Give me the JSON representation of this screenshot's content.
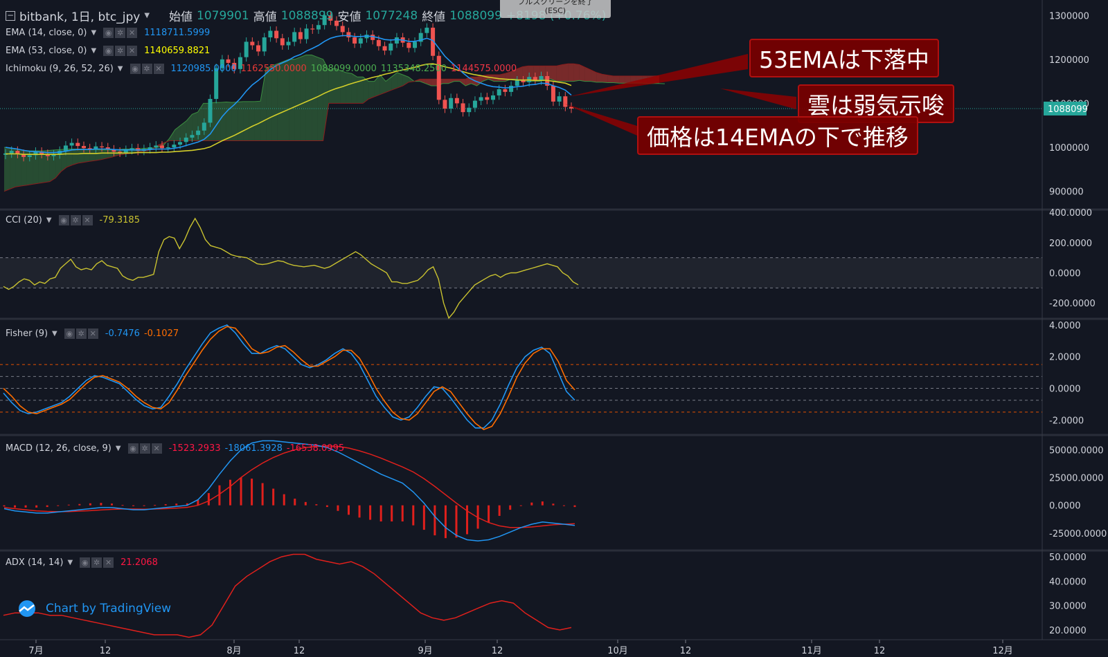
{
  "header": {
    "collapse_icon": "minus-square-icon",
    "symbol": "bitbank, 1日, btc_jpy",
    "open_label": "始値",
    "open_value": "1079901",
    "high_label": "高値",
    "high_value": "1088899",
    "low_label": "安値",
    "low_value": "1077248",
    "close_label": "終値",
    "close_value": "1088099",
    "change": "+8198 (+0.76%)"
  },
  "fullscreen_exit": {
    "label": "フルスクリーンを終了",
    "shortcut": "(ESC)"
  },
  "studies": {
    "ema14": {
      "label": "EMA (14, close, 0)",
      "value": "1118711.5999",
      "color": "#2196f3"
    },
    "ema53": {
      "label": "EMA (53, close, 0)",
      "value": "1140659.8821",
      "color": "#ffff00"
    },
    "ichimoku": {
      "label": "Ichimoku (9, 26, 52, 26)",
      "values": [
        "1120985.0000",
        "1162550.0000",
        "1088099.0000",
        "1135348.2500",
        "1144575.0000"
      ],
      "colors": [
        "#2196f3",
        "#e53935",
        "#4caf50",
        "#4caf50",
        "#f23645"
      ]
    },
    "cci": {
      "label": "CCI (20)",
      "value": "-79.3185",
      "color": "#c9c230"
    },
    "fisher": {
      "label": "Fisher (9)",
      "values": [
        "-0.7476",
        "-0.1027"
      ],
      "colors": [
        "#2196f3",
        "#ff6d00"
      ]
    },
    "macd": {
      "label": "MACD (12, 26, close, 9)",
      "values": [
        "-1523.2933",
        "-18061.3928",
        "-16538.0995"
      ],
      "colors": [
        "#ff1744",
        "#2196f3",
        "#ff1744"
      ]
    },
    "adx": {
      "label": "ADX (14, 14)",
      "value": "21.2068",
      "color": "#ff1744"
    }
  },
  "annotations": [
    "53EMAは下落中",
    "雲は弱気示唆",
    "価格は14EMAの下で推移"
  ],
  "branding": {
    "text": "Chart by TradingView",
    "icon": "tradingview-cloud-icon"
  },
  "chart_data": [
    {
      "type": "candlestick",
      "x_tick_labels": [
        "7月",
        "12",
        "8月",
        "12",
        "9月",
        "12",
        "10月",
        "12",
        "11月",
        "12",
        "12月"
      ],
      "y_ticks": [
        900000,
        1000000,
        1100000,
        1200000,
        1300000
      ],
      "last_price": 1088099,
      "ylim": [
        860000,
        1335000
      ],
      "close": [
        986000,
        992000,
        985000,
        978000,
        982000,
        990000,
        985000,
        980000,
        984000,
        992000,
        1004000,
        1010000,
        1003000,
        998000,
        996000,
        1002000,
        1000000,
        995000,
        990000,
        988000,
        994000,
        998000,
        992000,
        996000,
        1000000,
        1004000,
        998000,
        1000000,
        1006000,
        1012000,
        1022000,
        1028000,
        1038000,
        1056000,
        1110000,
        1180000,
        1200000,
        1192000,
        1178000,
        1205000,
        1240000,
        1232000,
        1218000,
        1250000,
        1265000,
        1248000,
        1232000,
        1240000,
        1262000,
        1246000,
        1270000,
        1268000,
        1278000,
        1300000,
        1288000,
        1276000,
        1262000,
        1250000,
        1236000,
        1248000,
        1256000,
        1244000,
        1230000,
        1220000,
        1236000,
        1250000,
        1238000,
        1226000,
        1240000,
        1260000,
        1272000,
        1208000,
        1108000,
        1088000,
        1112000,
        1100000,
        1080000,
        1090000,
        1106000,
        1114000,
        1108000,
        1118000,
        1132000,
        1126000,
        1140000,
        1152000,
        1148000,
        1160000,
        1152000,
        1162000,
        1140000,
        1104000,
        1116000,
        1092000,
        1088099
      ],
      "ema14": [
        1000000,
        998000,
        996000,
        993000,
        991000,
        990000,
        989000,
        988000,
        988000,
        989000,
        991000,
        994000,
        995000,
        995000,
        995000,
        996000,
        996000,
        996000,
        995000,
        994000,
        994000,
        994000,
        994000,
        994000,
        995000,
        996000,
        996000,
        996000,
        998000,
        1000000,
        1004000,
        1008000,
        1012000,
        1018000,
        1030000,
        1050000,
        1070000,
        1085000,
        1097000,
        1111000,
        1128000,
        1142000,
        1152000,
        1164000,
        1177000,
        1186000,
        1192000,
        1198000,
        1206000,
        1211000,
        1219000,
        1225000,
        1232000,
        1241000,
        1248000,
        1252000,
        1254000,
        1254000,
        1252000,
        1252000,
        1253000,
        1252000,
        1249000,
        1245000,
        1244000,
        1245000,
        1244000,
        1241000,
        1241000,
        1244000,
        1248000,
        1243000,
        1225000,
        1207000,
        1194000,
        1182000,
        1169000,
        1158000,
        1151000,
        1146000,
        1141000,
        1138000,
        1137000,
        1135000,
        1136000,
        1138000,
        1139000,
        1142000,
        1143000,
        1146000,
        1145000,
        1140000,
        1136000,
        1130000,
        1118712
      ],
      "ema53": [
        985000,
        985000,
        985000,
        984000,
        984000,
        984000,
        984000,
        984000,
        984000,
        984000,
        985000,
        985000,
        985000,
        986000,
        986000,
        986000,
        987000,
        987000,
        987000,
        987000,
        987000,
        987000,
        988000,
        988000,
        988000,
        988000,
        989000,
        989000,
        990000,
        991000,
        992000,
        993000,
        995000,
        997000,
        1001000,
        1008000,
        1015000,
        1021000,
        1027000,
        1034000,
        1041000,
        1048000,
        1054000,
        1061000,
        1068000,
        1074000,
        1080000,
        1086000,
        1092000,
        1098000,
        1104000,
        1110000,
        1116000,
        1123000,
        1129000,
        1134000,
        1138000,
        1143000,
        1147000,
        1151000,
        1155000,
        1159000,
        1162000,
        1166000,
        1169000,
        1173000,
        1176000,
        1179000,
        1182000,
        1186000,
        1189000,
        1190000,
        1187000,
        1183000,
        1180000,
        1176000,
        1172000,
        1168000,
        1165000,
        1163000,
        1160000,
        1158000,
        1156000,
        1155000,
        1154000,
        1153000,
        1153000,
        1153000,
        1152000,
        1152000,
        1152000,
        1150000,
        1148000,
        1146000,
        1140660
      ],
      "cloud_a": [
        1000000,
        998000,
        996000,
        994000,
        992000,
        992000,
        992000,
        992000,
        993000,
        994000,
        995000,
        996000,
        996000,
        996000,
        996000,
        995000,
        995000,
        994000,
        994000,
        994000,
        995000,
        996000,
        996000,
        997000,
        997000,
        998000,
        998000,
        1000000,
        1005000,
        1020000,
        1040000,
        1050000,
        1060000,
        1075000,
        1080000,
        1100000,
        1100000,
        1102000,
        1102000,
        1103000,
        1102000,
        1103000,
        1104000,
        1104000,
        1104000,
        1105000,
        1180000,
        1185000,
        1190000,
        1195000,
        1200000,
        1200000,
        1205000,
        1210000,
        1210000,
        1205000,
        1200000,
        1175000,
        1180000,
        1175000,
        1170000,
        1168000,
        1160000,
        1160000,
        1150000,
        1150000,
        1165000,
        1150000,
        1160000,
        1170000,
        1165000,
        1160000,
        1150000,
        1150000,
        1145000,
        1140000,
        1140000,
        1145000,
        1145000,
        1150000,
        1150000,
        1140000,
        1145000,
        1140000,
        1150000,
        1155000,
        1150000,
        1150000,
        1150000,
        1155000,
        1155000,
        1150000,
        1150000,
        1150000,
        1150000,
        1155000,
        1155000,
        1150000,
        1150000,
        1150000,
        1150000,
        1152000,
        1150000,
        1150000,
        1148000,
        1148000,
        1147000,
        1147000,
        1146000,
        1146000,
        1146000,
        1146000,
        1146000,
        1145000,
        1145000,
        1145000,
        1144575
      ],
      "cloud_b": [
        900000,
        905000,
        910000,
        912000,
        914000,
        916000,
        918000,
        920000,
        922000,
        930000,
        945000,
        955000,
        960000,
        964000,
        966000,
        968000,
        970000,
        972000,
        975000,
        978000,
        982000,
        984000,
        986000,
        988000,
        990000,
        992000,
        995000,
        1005000,
        1010000,
        1015000,
        1015000,
        1015000,
        1015000,
        1015000,
        1015000,
        1015000,
        1015000,
        1015000,
        1015000,
        1015000,
        1015000,
        1015000,
        1015000,
        1015000,
        1015000,
        1015000,
        1015000,
        1015000,
        1015000,
        1015000,
        1015000,
        1015000,
        1015000,
        1015000,
        1015000,
        1015000,
        1015000,
        1100000,
        1100000,
        1100000,
        1100000,
        1100000,
        1100000,
        1100000,
        1110000,
        1115000,
        1120000,
        1125000,
        1130000,
        1135000,
        1140000,
        1148000,
        1150000,
        1155000,
        1155000,
        1155000,
        1155000,
        1155000,
        1155000,
        1155000,
        1155000,
        1155000,
        1160000,
        1160000,
        1163000,
        1165000,
        1165000,
        1165000,
        1168000,
        1172000,
        1178000,
        1183000,
        1185000,
        1185000,
        1185000,
        1185000,
        1185000,
        1185000,
        1188000,
        1190000,
        1190000,
        1188000,
        1182000,
        1176000,
        1170000,
        1166000,
        1164000,
        1162000,
        1162000,
        1162000,
        1162000,
        1162000,
        1162000,
        1162000,
        1162000,
        1162550
      ]
    },
    {
      "type": "line",
      "name": "CCI",
      "y_ticks": [
        400,
        200,
        0,
        -200
      ],
      "band": [
        100,
        -100
      ],
      "ylim": [
        -300,
        410
      ],
      "values": [
        -90,
        -110,
        -90,
        -60,
        -40,
        -50,
        -80,
        -60,
        -70,
        -40,
        -30,
        30,
        60,
        90,
        40,
        20,
        30,
        20,
        60,
        80,
        50,
        40,
        30,
        -20,
        -40,
        -50,
        -30,
        -30,
        -20,
        -10,
        140,
        220,
        240,
        230,
        160,
        220,
        300,
        360,
        300,
        220,
        180,
        170,
        160,
        140,
        120,
        110,
        105,
        100,
        80,
        60,
        55,
        60,
        70,
        80,
        75,
        60,
        50,
        45,
        40,
        45,
        50,
        40,
        30,
        40,
        60,
        80,
        100,
        120,
        140,
        120,
        90,
        60,
        40,
        20,
        0,
        -60,
        -60,
        -70,
        -70,
        -60,
        -50,
        -20,
        20,
        40,
        -40,
        -200,
        -300,
        -260,
        -200,
        -160,
        -120,
        -80,
        -60,
        -40,
        -20,
        -10,
        -30,
        -10,
        0,
        0,
        10,
        20,
        30,
        40,
        50,
        60,
        50,
        40,
        0,
        -20,
        -60,
        -79
      ]
    },
    {
      "type": "line",
      "name": "Fisher",
      "y_ticks": [
        4,
        2,
        0,
        -2
      ],
      "band_lines": [
        1.5,
        0.75,
        0,
        -0.75,
        -1.5
      ],
      "ylim": [
        -2.9,
        4.3
      ],
      "series": [
        {
          "values": [
            -0.3,
            -0.9,
            -1.4,
            -1.6,
            -1.5,
            -1.3,
            -1.1,
            -0.9,
            -0.5,
            0.0,
            0.5,
            0.8,
            0.7,
            0.5,
            0.3,
            -0.2,
            -0.7,
            -1.1,
            -1.3,
            -1.2,
            -0.5,
            0.3,
            1.2,
            2.0,
            2.8,
            3.5,
            3.8,
            4.0,
            3.5,
            2.8,
            2.2,
            2.2,
            2.5,
            2.7,
            2.5,
            2.0,
            1.5,
            1.3,
            1.5,
            1.8,
            2.2,
            2.5,
            2.2,
            1.5,
            0.5,
            -0.5,
            -1.2,
            -1.8,
            -2.0,
            -1.8,
            -1.2,
            -0.5,
            0.1,
            0.0,
            -0.6,
            -1.3,
            -2.0,
            -2.5,
            -2.5,
            -2.0,
            -1.0,
            0.2,
            1.3,
            2.0,
            2.4,
            2.6,
            2.2,
            1.0,
            -0.2,
            -0.75
          ]
        },
        {
          "values": [
            0.0,
            -0.5,
            -1.1,
            -1.5,
            -1.6,
            -1.4,
            -1.2,
            -1.0,
            -0.7,
            -0.2,
            0.3,
            0.7,
            0.8,
            0.6,
            0.4,
            0.0,
            -0.5,
            -0.9,
            -1.2,
            -1.3,
            -0.9,
            -0.1,
            0.8,
            1.6,
            2.4,
            3.1,
            3.6,
            3.9,
            3.8,
            3.2,
            2.5,
            2.2,
            2.3,
            2.6,
            2.7,
            2.3,
            1.8,
            1.4,
            1.4,
            1.7,
            2.0,
            2.4,
            2.4,
            1.9,
            1.0,
            0.0,
            -0.8,
            -1.5,
            -1.9,
            -2.0,
            -1.6,
            -0.9,
            -0.2,
            0.1,
            -0.2,
            -0.9,
            -1.6,
            -2.2,
            -2.6,
            -2.4,
            -1.6,
            -0.5,
            0.7,
            1.6,
            2.2,
            2.5,
            2.5,
            1.7,
            0.5,
            -0.1
          ]
        }
      ]
    },
    {
      "type": "line+bar",
      "name": "MACD",
      "y_ticks": [
        50000,
        25000,
        0,
        -25000
      ],
      "ylim": [
        -40000,
        62000
      ],
      "macd": [
        -3000,
        -5000,
        -6000,
        -7000,
        -7000,
        -6000,
        -5000,
        -4000,
        -3000,
        -2000,
        -2000,
        -3000,
        -4000,
        -4000,
        -3000,
        -2000,
        -1000,
        0,
        5000,
        15000,
        28000,
        40000,
        50000,
        56000,
        58000,
        58000,
        57000,
        56000,
        55000,
        54000,
        52000,
        48000,
        43000,
        38000,
        33000,
        28000,
        24000,
        20000,
        12000,
        2000,
        -10000,
        -20000,
        -27000,
        -31000,
        -32000,
        -31000,
        -28000,
        -24000,
        -20000,
        -17000,
        -15000,
        -16000,
        -17000,
        -18061
      ],
      "signal": [
        -2000,
        -3000,
        -4000,
        -5000,
        -5500,
        -5700,
        -5600,
        -5200,
        -4800,
        -4200,
        -3600,
        -3300,
        -3300,
        -3400,
        -3300,
        -3000,
        -2500,
        -1800,
        0,
        4000,
        10000,
        17000,
        25000,
        32000,
        38000,
        43000,
        47000,
        50000,
        52000,
        53000,
        53500,
        53000,
        51500,
        49000,
        46000,
        42500,
        38500,
        34500,
        30000,
        24000,
        17000,
        9500,
        2000,
        -5000,
        -11000,
        -15500,
        -18500,
        -20000,
        -20000,
        -19500,
        -18500,
        -17500,
        -17000,
        -16538
      ],
      "histogram": [
        -1000,
        -2000,
        -2000,
        -2000,
        -1500,
        -300,
        600,
        1200,
        1800,
        2200,
        1600,
        300,
        -700,
        -600,
        300,
        1000,
        1500,
        1800,
        5000,
        11000,
        18000,
        23000,
        25000,
        24000,
        20000,
        15000,
        10000,
        6000,
        3000,
        1000,
        -1500,
        -5000,
        -8500,
        -11000,
        -13000,
        -14500,
        -14500,
        -14500,
        -18000,
        -22000,
        -27000,
        -29500,
        -29000,
        -26000,
        -21000,
        -15500,
        -9500,
        -4000,
        0,
        2500,
        3500,
        1500,
        0,
        -1523
      ]
    },
    {
      "type": "line",
      "name": "ADX",
      "y_ticks": [
        50,
        40,
        30,
        20
      ],
      "ylim": [
        16,
        52
      ],
      "values": [
        26,
        27,
        27,
        27,
        26,
        26,
        25,
        24,
        23,
        22,
        21,
        20,
        19,
        18,
        18,
        18,
        17,
        18,
        22,
        30,
        38,
        42,
        45,
        48,
        50,
        51,
        51,
        49,
        48,
        47,
        48,
        46,
        43,
        39,
        35,
        31,
        27,
        25,
        24,
        25,
        27,
        29,
        31,
        32,
        31,
        27,
        24,
        21,
        20,
        21
      ]
    }
  ]
}
